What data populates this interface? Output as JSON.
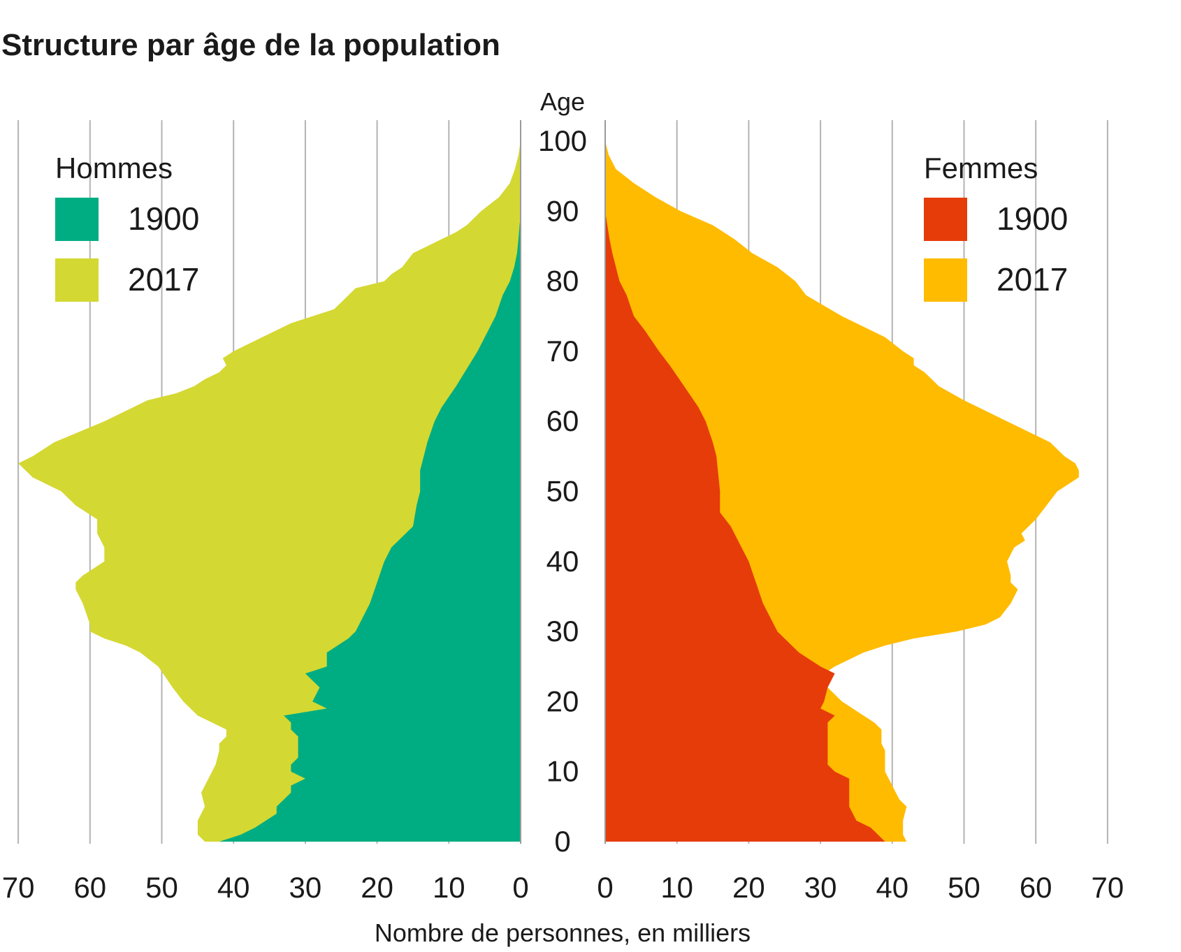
{
  "title": "Structure par âge de la population",
  "chart_data": {
    "type": "area",
    "title": "Structure par âge de la population",
    "xlabel": "Nombre de personnes, en milliers",
    "ylabel": "Age",
    "xlim": [
      0,
      70
    ],
    "ylim": [
      0,
      100
    ],
    "x_ticks": [
      "0",
      "10",
      "20",
      "30",
      "40",
      "50",
      "60",
      "70"
    ],
    "y_ticks": [
      "0",
      "10",
      "20",
      "30",
      "40",
      "50",
      "60",
      "70",
      "80",
      "90",
      "100"
    ],
    "grid": true,
    "panels": [
      {
        "group": "Hommes",
        "side": "left",
        "legend_position": "top-left",
        "series": [
          {
            "name": "1900",
            "color": "#00ad82",
            "ages": [
              0,
              1,
              2,
              4,
              5,
              7,
              8,
              9,
              10,
              11,
              12,
              14,
              15,
              16,
              17,
              18,
              19,
              20,
              22,
              24,
              25,
              27,
              29,
              30,
              32,
              34,
              37,
              40,
              42,
              45,
              48,
              50,
              53,
              55,
              57,
              60,
              62,
              65,
              70,
              75,
              78,
              80,
              82,
              84,
              86,
              88,
              89,
              90
            ],
            "values": [
              42,
              39,
              37,
              34,
              34,
              32,
              32,
              30,
              32,
              32,
              31,
              31,
              31,
              32,
              32,
              33,
              27,
              29,
              28,
              30,
              27,
              27,
              24,
              23,
              22,
              21,
              20,
              19,
              18,
              15,
              14.5,
              14,
              14,
              13.5,
              13,
              12,
              11,
              9,
              6,
              3.5,
              2.5,
              1.5,
              0.9,
              0.5,
              0.3,
              0.15,
              0.05,
              0
            ]
          },
          {
            "name": "2017",
            "color": "#d4d832",
            "ages": [
              0,
              1,
              3,
              5,
              7,
              9,
              10,
              11,
              13,
              14,
              15,
              16,
              17,
              18,
              20,
              22,
              25,
              27,
              28,
              29,
              30,
              31,
              34,
              36,
              37,
              38,
              40,
              42,
              44,
              46,
              48,
              50,
              51,
              52,
              53,
              54,
              55,
              57,
              60,
              63,
              64,
              65,
              66,
              67,
              68,
              69,
              70,
              72,
              74,
              76,
              77,
              78,
              79,
              80,
              81,
              82,
              84,
              86,
              87,
              88,
              90,
              92,
              94,
              96,
              98,
              100
            ],
            "values": [
              44,
              45,
              45,
              44,
              44.5,
              43.5,
              43,
              42.5,
              42,
              42,
              41,
              41,
              43,
              45,
              47,
              48.5,
              50.5,
              53,
              55,
              58,
              60,
              60,
              61,
              62,
              62,
              61,
              58,
              58,
              59,
              59,
              62,
              64,
              66,
              68,
              69,
              70,
              68,
              65,
              58,
              52,
              48,
              45.5,
              44,
              42,
              41,
              41.5,
              40,
              36,
              32,
              26,
              25,
              24,
              23,
              19,
              18,
              16.5,
              15,
              11,
              9,
              7.5,
              5.5,
              3,
              1.5,
              0.8,
              0.3,
              0
            ]
          }
        ]
      },
      {
        "group": "Femmes",
        "side": "right",
        "legend_position": "top-right",
        "series": [
          {
            "name": "1900",
            "color": "#e63c0a",
            "ages": [
              0,
              1,
              2,
              3,
              5,
              6,
              7,
              8,
              9,
              10,
              11,
              12,
              14,
              15,
              16,
              17,
              18,
              19,
              20,
              22,
              24,
              25,
              27,
              30,
              32,
              34,
              37,
              40,
              42,
              45,
              47,
              50,
              52,
              55,
              57,
              60,
              62,
              65,
              68,
              70,
              73,
              75,
              78,
              80,
              82,
              84,
              86,
              88,
              90
            ],
            "values": [
              39,
              38,
              37,
              35,
              34,
              34,
              34,
              34,
              34,
              32,
              31,
              31,
              31,
              31,
              31,
              31,
              32,
              30,
              30.5,
              31,
              32,
              30,
              27,
              24,
              23,
              22,
              21,
              20,
              19,
              17.5,
              16,
              16,
              15.8,
              15.5,
              15,
              14,
              13,
              11,
              9,
              7.5,
              5.5,
              4,
              3,
              2,
              1.5,
              1,
              0.6,
              0.3,
              0
            ]
          },
          {
            "name": "2017",
            "color": "#ffbb00",
            "ages": [
              0,
              1,
              2,
              3,
              5,
              6,
              7,
              8,
              9,
              10,
              11,
              12,
              13,
              14,
              15,
              16,
              17,
              18,
              20,
              22,
              24,
              25,
              27,
              28,
              29,
              30,
              31,
              32,
              34,
              35,
              36,
              37,
              38,
              40,
              42,
              43,
              44,
              46,
              48,
              50,
              51,
              52,
              53,
              54,
              55,
              56,
              57,
              58,
              60,
              63,
              65,
              67,
              68,
              69,
              70,
              72,
              75,
              78,
              80,
              82,
              84,
              86,
              88,
              90,
              92,
              94,
              96,
              98,
              100
            ],
            "values": [
              42,
              41.5,
              41.5,
              41.5,
              42,
              41,
              40.5,
              40,
              39.5,
              39,
              39,
              39,
              39,
              38.5,
              38.5,
              38.5,
              37.5,
              36,
              33,
              31,
              30.5,
              32,
              36,
              39,
              43,
              49,
              53,
              55,
              56.5,
              57,
              57.5,
              56.5,
              56.5,
              56,
              57,
              58.5,
              58,
              60,
              61.5,
              63,
              64.5,
              66,
              66,
              65.5,
              64,
              63,
              62,
              60,
              56,
              50,
              46.5,
              44.5,
              43,
              43,
              41.5,
              39,
              33,
              28,
              26.5,
              24,
              20.5,
              18,
              15,
              10.5,
              7,
              4,
              1.5,
              0.5,
              0
            ]
          }
        ]
      }
    ]
  }
}
